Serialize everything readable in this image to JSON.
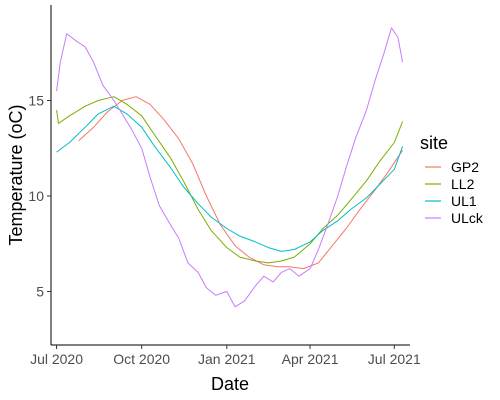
{
  "chart_data": {
    "type": "line",
    "title": "",
    "xlabel": "Date",
    "ylabel": "Temperature (oC)",
    "x_range": [
      "2020-06-25",
      "2021-07-18"
    ],
    "ylim": [
      2.2,
      20.0
    ],
    "x_ticks": [
      {
        "date": "2020-07-01",
        "label": "Jul 2020"
      },
      {
        "date": "2020-10-01",
        "label": "Oct 2020"
      },
      {
        "date": "2021-01-01",
        "label": "Jan 2021"
      },
      {
        "date": "2021-04-01",
        "label": "Apr 2021"
      },
      {
        "date": "2021-07-01",
        "label": "Jul 2021"
      }
    ],
    "y_ticks": [
      {
        "value": 5,
        "label": "5"
      },
      {
        "value": 10,
        "label": "10"
      },
      {
        "value": 15,
        "label": "15"
      }
    ],
    "grid": false,
    "legend": {
      "title": "site",
      "position": "right"
    },
    "series": [
      {
        "name": "GP2",
        "color": "#F8766D",
        "x": [
          "2020-07-25",
          "2020-08-10",
          "2020-08-25",
          "2020-09-10",
          "2020-09-25",
          "2020-10-10",
          "2020-10-25",
          "2020-11-10",
          "2020-11-25",
          "2020-12-10",
          "2020-12-25",
          "2021-01-10",
          "2021-01-25",
          "2021-02-10",
          "2021-02-25",
          "2021-03-10",
          "2021-03-25",
          "2021-04-10",
          "2021-04-25",
          "2021-05-10",
          "2021-05-25",
          "2021-06-10",
          "2021-06-25",
          "2021-07-10"
        ],
        "y": [
          12.9,
          13.6,
          14.4,
          15.0,
          15.2,
          14.8,
          14.0,
          13.0,
          11.7,
          10.0,
          8.5,
          7.4,
          6.8,
          6.4,
          6.3,
          6.3,
          6.2,
          6.5,
          7.4,
          8.3,
          9.3,
          10.3,
          11.3,
          12.4
        ]
      },
      {
        "name": "LL2",
        "color": "#7CAE00",
        "x": [
          "2020-07-01",
          "2020-07-03",
          "2020-07-15",
          "2020-08-01",
          "2020-08-15",
          "2020-09-01",
          "2020-09-15",
          "2020-10-01",
          "2020-10-15",
          "2020-11-01",
          "2020-11-15",
          "2020-12-01",
          "2020-12-15",
          "2021-01-01",
          "2021-01-15",
          "2021-02-01",
          "2021-02-15",
          "2021-03-01",
          "2021-03-15",
          "2021-04-01",
          "2021-04-15",
          "2021-05-01",
          "2021-05-15",
          "2021-06-01",
          "2021-06-15",
          "2021-07-01",
          "2021-07-10"
        ],
        "y": [
          14.5,
          13.8,
          14.2,
          14.7,
          15.0,
          15.2,
          14.8,
          14.2,
          13.2,
          12.0,
          10.8,
          9.3,
          8.2,
          7.3,
          6.8,
          6.6,
          6.5,
          6.6,
          6.8,
          7.5,
          8.3,
          9.0,
          9.8,
          10.8,
          11.8,
          12.8,
          13.9
        ]
      },
      {
        "name": "UL1",
        "color": "#00BFC4",
        "x": [
          "2020-07-01",
          "2020-07-15",
          "2020-08-01",
          "2020-08-15",
          "2020-09-01",
          "2020-09-15",
          "2020-10-01",
          "2020-10-15",
          "2020-11-01",
          "2020-11-15",
          "2020-12-01",
          "2020-12-15",
          "2021-01-01",
          "2021-01-15",
          "2021-02-01",
          "2021-02-15",
          "2021-03-01",
          "2021-03-15",
          "2021-04-01",
          "2021-04-15",
          "2021-05-01",
          "2021-05-15",
          "2021-06-01",
          "2021-06-15",
          "2021-07-01",
          "2021-07-10"
        ],
        "y": [
          12.3,
          12.8,
          13.6,
          14.3,
          14.7,
          14.3,
          13.6,
          12.6,
          11.5,
          10.5,
          9.6,
          8.9,
          8.3,
          7.9,
          7.6,
          7.3,
          7.1,
          7.2,
          7.6,
          8.2,
          8.7,
          9.3,
          9.9,
          10.6,
          11.4,
          12.6
        ]
      },
      {
        "name": "ULck",
        "color": "#C77CFF",
        "x": [
          "2020-07-01",
          "2020-07-05",
          "2020-07-12",
          "2020-07-20",
          "2020-08-01",
          "2020-08-10",
          "2020-08-20",
          "2020-09-01",
          "2020-09-10",
          "2020-09-20",
          "2020-10-01",
          "2020-10-10",
          "2020-10-20",
          "2020-11-01",
          "2020-11-10",
          "2020-11-20",
          "2020-12-01",
          "2020-12-10",
          "2020-12-20",
          "2021-01-01",
          "2021-01-10",
          "2021-01-20",
          "2021-02-01",
          "2021-02-10",
          "2021-02-20",
          "2021-03-01",
          "2021-03-10",
          "2021-03-20",
          "2021-04-01",
          "2021-04-10",
          "2021-04-20",
          "2021-05-01",
          "2021-05-10",
          "2021-05-20",
          "2021-06-01",
          "2021-06-10",
          "2021-06-20",
          "2021-06-28",
          "2021-07-05",
          "2021-07-10"
        ],
        "y": [
          15.5,
          17.0,
          18.5,
          18.2,
          17.8,
          17.0,
          15.8,
          15.0,
          14.3,
          13.5,
          12.5,
          11.0,
          9.5,
          8.5,
          7.8,
          6.5,
          6.0,
          5.2,
          4.8,
          5.0,
          4.2,
          4.5,
          5.3,
          5.8,
          5.5,
          6.0,
          6.2,
          5.8,
          6.2,
          7.2,
          8.5,
          10.0,
          11.5,
          13.0,
          14.5,
          16.0,
          17.5,
          18.8,
          18.3,
          17.0
        ]
      }
    ]
  }
}
